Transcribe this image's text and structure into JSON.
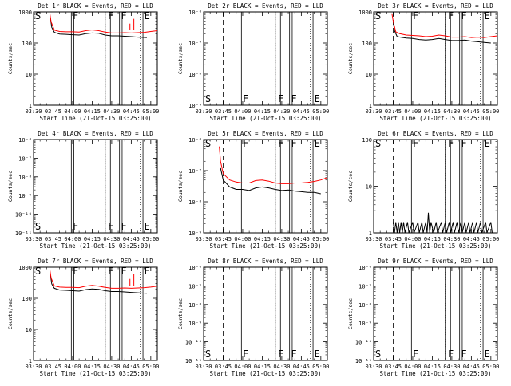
{
  "x_ticks": [
    "03:30",
    "03:45",
    "04:00",
    "04:15",
    "04:30",
    "04:45",
    "05:00"
  ],
  "xlabel": "Start Time (21-Oct-15 03:25:00)",
  "ylabel": "Counts/sec",
  "legend_suffix": "BLACK = Events, RED = LLD",
  "flag_labels": {
    "s": "S",
    "f": "F",
    "e": "E"
  },
  "colors": {
    "events": "#000000",
    "lld": "#ff0000"
  },
  "chart_data": [
    {
      "type": "line",
      "title": "Det 1r BLACK = Events, RED = LLD",
      "xlim_min": [
        0,
        95
      ],
      "yscale": "log",
      "ylim": [
        1,
        1000
      ],
      "y_tick_labels": [
        "1",
        "10",
        "100",
        "1000"
      ],
      "flags": {
        "s": 0.5,
        "f": [
          30,
          57,
          67
        ],
        "e": [
          85
        ]
      },
      "series": [
        {
          "name": "Events",
          "kind": "events",
          "values": [
            [
              13,
              620
            ],
            [
              14,
              320
            ],
            [
              16,
              220
            ],
            [
              20,
              195
            ],
            [
              25,
              190
            ],
            [
              30,
              185
            ],
            [
              35,
              180
            ],
            [
              40,
              200
            ],
            [
              45,
              210
            ],
            [
              50,
              205
            ],
            [
              55,
              180
            ],
            [
              60,
              170
            ],
            [
              65,
              170
            ],
            [
              70,
              165
            ],
            [
              75,
              160
            ],
            [
              80,
              155
            ],
            [
              87,
              150
            ]
          ]
        },
        {
          "name": "LLD",
          "kind": "lld",
          "values": [
            [
              12.5,
              900
            ],
            [
              13.5,
              480
            ],
            [
              16,
              260
            ],
            [
              20,
              235
            ],
            [
              25,
              230
            ],
            [
              30,
              230
            ],
            [
              35,
              225
            ],
            [
              40,
              250
            ],
            [
              45,
              265
            ],
            [
              50,
              250
            ],
            [
              55,
              225
            ],
            [
              60,
              210
            ],
            [
              65,
              210
            ],
            [
              70,
              215
            ],
            [
              75,
              210
            ],
            [
              80,
              215
            ],
            [
              85,
              220
            ],
            [
              90,
              235
            ],
            [
              95,
              250
            ]
          ]
        }
      ]
    },
    {
      "type": "line",
      "title": "Det 2r BLACK = Events, RED = LLD",
      "xlim_min": [
        0,
        95
      ],
      "yscale": "log",
      "ylim": [
        1e-09,
        1e-06
      ],
      "y_tick_labels": [
        "10⁻⁹",
        "10⁻⁸",
        "10⁻⁷",
        "10⁻⁶"
      ],
      "flags": {
        "s": 0.5,
        "f": [
          30,
          57,
          67
        ],
        "e": [
          85
        ]
      },
      "series": []
    },
    {
      "type": "line",
      "title": "Det 3r BLACK = Events, RED = LLD",
      "xlim_min": [
        0,
        95
      ],
      "yscale": "log",
      "ylim": [
        1,
        1000
      ],
      "y_tick_labels": [
        "1",
        "10",
        "100",
        "1000"
      ],
      "flags": {
        "s": 0.5,
        "f": [
          30,
          57,
          67
        ],
        "e": [
          85
        ]
      },
      "series": [
        {
          "name": "Events",
          "kind": "events",
          "values": [
            [
              15,
              500
            ],
            [
              16,
              250
            ],
            [
              18,
              160
            ],
            [
              25,
              145
            ],
            [
              30,
              140
            ],
            [
              35,
              130
            ],
            [
              40,
              125
            ],
            [
              45,
              130
            ],
            [
              50,
              140
            ],
            [
              55,
              130
            ],
            [
              60,
              120
            ],
            [
              65,
              120
            ],
            [
              70,
              125
            ],
            [
              75,
              115
            ],
            [
              80,
              110
            ],
            [
              85,
              105
            ],
            [
              90,
              100
            ]
          ]
        },
        {
          "name": "LLD",
          "kind": "lld",
          "values": [
            [
              14,
              900
            ],
            [
              15,
              500
            ],
            [
              17,
              230
            ],
            [
              20,
              200
            ],
            [
              25,
              180
            ],
            [
              30,
              175
            ],
            [
              35,
              170
            ],
            [
              40,
              160
            ],
            [
              45,
              165
            ],
            [
              50,
              180
            ],
            [
              55,
              170
            ],
            [
              60,
              155
            ],
            [
              65,
              155
            ],
            [
              70,
              160
            ],
            [
              75,
              150
            ],
            [
              80,
              155
            ],
            [
              85,
              150
            ],
            [
              90,
              160
            ],
            [
              95,
              170
            ]
          ]
        }
      ]
    },
    {
      "type": "line",
      "title": "Det 4r BLACK = Events, RED = LLD",
      "xlim_min": [
        0,
        95
      ],
      "yscale": "log",
      "ylim": [
        1e-11,
        1e-06
      ],
      "y_tick_labels": [
        "10⁻¹¹",
        "10⁻¹⁰",
        "10⁻⁹",
        "10⁻⁸",
        "10⁻⁷",
        "10⁻⁶"
      ],
      "flags": {
        "s": 0.5,
        "f": [
          30,
          57,
          67
        ],
        "e": [
          85
        ]
      },
      "series": []
    },
    {
      "type": "line",
      "title": "Det 5r BLACK = Events, RED = LLD",
      "xlim_min": [
        0,
        95
      ],
      "yscale": "log",
      "ylim": [
        1e-09,
        1e-06
      ],
      "y_tick_labels": [
        "10⁻⁹",
        "10⁻⁸",
        "10⁻⁷",
        "10⁻⁶"
      ],
      "flags": {
        "s": 0.5,
        "f": [
          30,
          57,
          67
        ],
        "e": [
          85
        ]
      },
      "series": [
        {
          "name": "Events",
          "kind": "events",
          "values": [
            [
              13,
              1.2e-07
            ],
            [
              15,
              5e-08
            ],
            [
              20,
              3e-08
            ],
            [
              25,
              2.5e-08
            ],
            [
              30,
              2.5e-08
            ],
            [
              35,
              2.3e-08
            ],
            [
              40,
              2.8e-08
            ],
            [
              45,
              3e-08
            ],
            [
              50,
              2.8e-08
            ],
            [
              55,
              2.5e-08
            ],
            [
              60,
              2.3e-08
            ],
            [
              65,
              2.4e-08
            ],
            [
              70,
              2.2e-08
            ],
            [
              75,
              2.1e-08
            ],
            [
              80,
              2e-08
            ],
            [
              85,
              2e-08
            ],
            [
              90,
              1.8e-08
            ]
          ]
        },
        {
          "name": "LLD",
          "kind": "lld",
          "values": [
            [
              12,
              6e-07
            ],
            [
              13,
              2e-07
            ],
            [
              15,
              8e-08
            ],
            [
              20,
              5e-08
            ],
            [
              25,
              4.3e-08
            ],
            [
              30,
              4e-08
            ],
            [
              35,
              4e-08
            ],
            [
              40,
              4.8e-08
            ],
            [
              45,
              5e-08
            ],
            [
              50,
              4.6e-08
            ],
            [
              55,
              4e-08
            ],
            [
              60,
              3.8e-08
            ],
            [
              65,
              3.8e-08
            ],
            [
              70,
              4e-08
            ],
            [
              75,
              4e-08
            ],
            [
              80,
              4.2e-08
            ],
            [
              85,
              4.5e-08
            ],
            [
              90,
              5e-08
            ],
            [
              95,
              6e-08
            ]
          ]
        }
      ]
    },
    {
      "type": "line",
      "title": "Det 6r BLACK = Events, RED = LLD",
      "xlim_min": [
        0,
        95
      ],
      "yscale": "log",
      "ylim": [
        1,
        100
      ],
      "y_tick_labels": [
        "1",
        "10",
        "100"
      ],
      "flags": {
        "s": 0.5,
        "f": [
          30,
          57,
          67
        ],
        "e": [
          85
        ]
      },
      "series": [
        {
          "name": "Events",
          "kind": "events",
          "values": [
            [
              15,
              1.7
            ],
            [
              16,
              1
            ],
            [
              17,
              1.7
            ],
            [
              18,
              1
            ],
            [
              19,
              1.7
            ],
            [
              20,
              1
            ],
            [
              21,
              1.7
            ],
            [
              22,
              1
            ],
            [
              23,
              1.7
            ],
            [
              24,
              1
            ],
            [
              26,
              1.7
            ],
            [
              27,
              1
            ],
            [
              30,
              1.7
            ],
            [
              31,
              1
            ],
            [
              34,
              1.7
            ],
            [
              35,
              1
            ],
            [
              37,
              1.7
            ],
            [
              38,
              1
            ],
            [
              40,
              1.7
            ],
            [
              41,
              1
            ],
            [
              42,
              2.7
            ],
            [
              43,
              1
            ],
            [
              44,
              1.7
            ],
            [
              46,
              1
            ],
            [
              48,
              1.7
            ],
            [
              49,
              1
            ],
            [
              52,
              1.7
            ],
            [
              53,
              1
            ],
            [
              55,
              1.7
            ],
            [
              56,
              1
            ],
            [
              58,
              1.7
            ],
            [
              59,
              1
            ],
            [
              61,
              1.7
            ],
            [
              62,
              1
            ],
            [
              64,
              1.7
            ],
            [
              65,
              1
            ],
            [
              67,
              1.7
            ],
            [
              68,
              1
            ],
            [
              70,
              1.7
            ],
            [
              71,
              1
            ],
            [
              73,
              1.7
            ],
            [
              74,
              1
            ],
            [
              76,
              1.7
            ],
            [
              77,
              1
            ],
            [
              79,
              1.7
            ],
            [
              80,
              1
            ],
            [
              82,
              1.7
            ],
            [
              83,
              1
            ],
            [
              86,
              1.7
            ],
            [
              87,
              1
            ],
            [
              90,
              1.7
            ],
            [
              91,
              1
            ]
          ]
        }
      ]
    },
    {
      "type": "line",
      "title": "Det 7r BLACK = Events, RED = LLD",
      "xlim_min": [
        0,
        95
      ],
      "yscale": "log",
      "ylim": [
        1,
        1000
      ],
      "y_tick_labels": [
        "1",
        "10",
        "100",
        "1000"
      ],
      "flags": {
        "s": 0.5,
        "f": [
          30,
          57,
          67
        ],
        "e": [
          85
        ]
      },
      "series": [
        {
          "name": "Events",
          "kind": "events",
          "values": [
            [
              13,
              560
            ],
            [
              14,
              290
            ],
            [
              16,
              210
            ],
            [
              20,
              185
            ],
            [
              25,
              180
            ],
            [
              30,
              175
            ],
            [
              35,
              170
            ],
            [
              40,
              190
            ],
            [
              45,
              200
            ],
            [
              50,
              195
            ],
            [
              55,
              175
            ],
            [
              60,
              165
            ],
            [
              65,
              165
            ],
            [
              70,
              160
            ],
            [
              75,
              155
            ],
            [
              80,
              150
            ],
            [
              87,
              145
            ]
          ]
        },
        {
          "name": "LLD",
          "kind": "lld",
          "values": [
            [
              12.5,
              850
            ],
            [
              13.5,
              450
            ],
            [
              16,
              250
            ],
            [
              20,
              230
            ],
            [
              25,
              225
            ],
            [
              30,
              225
            ],
            [
              35,
              220
            ],
            [
              40,
              245
            ],
            [
              45,
              260
            ],
            [
              50,
              245
            ],
            [
              55,
              225
            ],
            [
              60,
              210
            ],
            [
              65,
              210
            ],
            [
              70,
              215
            ],
            [
              75,
              210
            ],
            [
              80,
              215
            ],
            [
              85,
              220
            ],
            [
              90,
              230
            ],
            [
              95,
              245
            ]
          ]
        }
      ]
    },
    {
      "type": "line",
      "title": "Det 8r BLACK = Events, RED = LLD",
      "xlim_min": [
        0,
        95
      ],
      "yscale": "log",
      "ylim": [
        1e-11,
        1e-06
      ],
      "y_tick_labels": [
        "10⁻¹¹",
        "10⁻¹⁰",
        "10⁻⁹",
        "10⁻⁸",
        "10⁻⁷",
        "10⁻⁶"
      ],
      "flags": {
        "s": 0.5,
        "f": [
          30,
          57,
          67
        ],
        "e": [
          85
        ]
      },
      "series": []
    },
    {
      "type": "line",
      "title": "Det 9r BLACK = Events, RED = LLD",
      "xlim_min": [
        0,
        95
      ],
      "yscale": "log",
      "ylim": [
        1e-11,
        1e-06
      ],
      "y_tick_labels": [
        "10⁻¹¹",
        "10⁻¹⁰",
        "10⁻⁹",
        "10⁻⁸",
        "10⁻⁷",
        "10⁻⁶"
      ],
      "flags": {
        "s": 0.5,
        "f": [
          30,
          57,
          67
        ],
        "e": [
          85
        ]
      },
      "series": []
    }
  ]
}
